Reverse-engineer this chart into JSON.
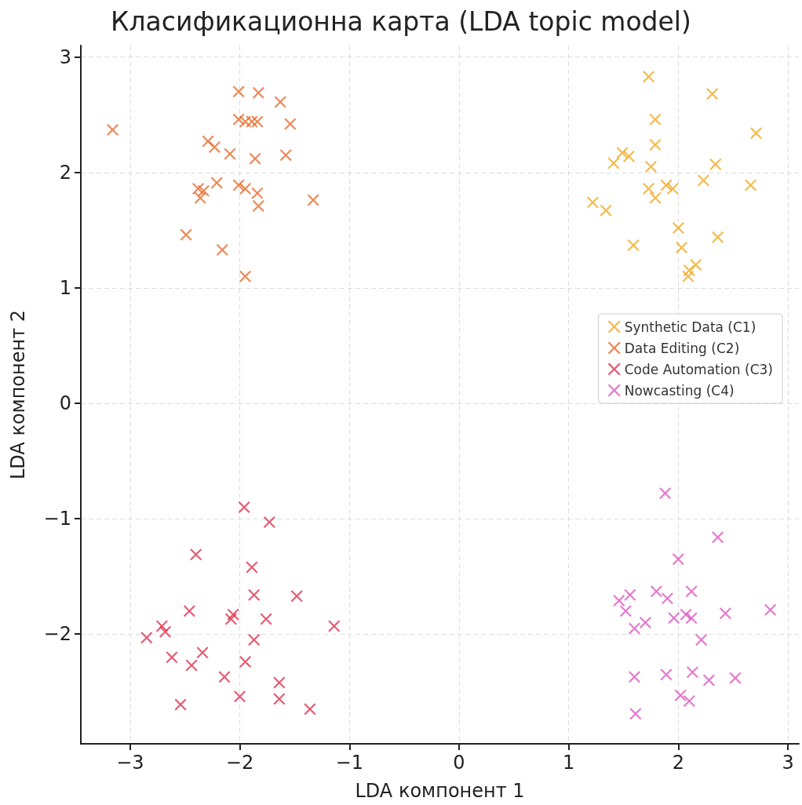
{
  "chart_data": {
    "type": "scatter",
    "title": "Класификационна карта (LDA topic model)",
    "xlabel": "LDA компонент 1",
    "ylabel": "LDA компонент 2",
    "xlim": [
      -3.45,
      3.1
    ],
    "ylim": [
      -2.95,
      3.1
    ],
    "xticks": [
      {
        "value": -3,
        "label": "−3"
      },
      {
        "value": -2,
        "label": "−2"
      },
      {
        "value": -1,
        "label": "−1"
      },
      0,
      1,
      2,
      3
    ],
    "yticks": [
      {
        "value": -2,
        "label": "−2"
      },
      {
        "value": -1,
        "label": "−1"
      },
      0,
      1,
      2,
      3
    ],
    "grid": true,
    "legend": "right",
    "marker": "cross",
    "series": [
      {
        "name": "Synthetic Data (C1)",
        "color": "#f2a71b",
        "x": [
          1.73,
          2.31,
          1.79,
          2.71,
          1.79,
          1.49,
          1.55,
          1.41,
          1.75,
          2.34,
          2.23,
          2.66,
          1.73,
          1.89,
          1.95,
          1.79,
          1.22,
          1.34,
          2.0,
          2.36,
          1.59,
          2.03,
          2.16,
          2.1,
          2.09
        ],
        "values": [
          2.83,
          2.68,
          2.46,
          2.34,
          2.24,
          2.17,
          2.14,
          2.08,
          2.05,
          2.07,
          1.93,
          1.89,
          1.86,
          1.89,
          1.86,
          1.78,
          1.74,
          1.67,
          1.52,
          1.44,
          1.37,
          1.35,
          1.2,
          1.15,
          1.1
        ]
      },
      {
        "name": "Data Editing (C2)",
        "color": "#e8692a",
        "x": [
          -3.16,
          -2.01,
          -1.83,
          -1.63,
          -2.01,
          -1.95,
          -1.89,
          -1.84,
          -1.54,
          -2.29,
          -2.23,
          -2.09,
          -1.86,
          -1.58,
          -2.21,
          -2.38,
          -2.33,
          -2.36,
          -2.01,
          -1.95,
          -1.84,
          -1.83,
          -1.33,
          -2.49,
          -2.16,
          -1.95
        ],
        "values": [
          2.37,
          2.7,
          2.69,
          2.61,
          2.46,
          2.44,
          2.44,
          2.44,
          2.42,
          2.27,
          2.22,
          2.16,
          2.12,
          2.15,
          1.91,
          1.86,
          1.84,
          1.78,
          1.89,
          1.86,
          1.82,
          1.71,
          1.76,
          1.46,
          1.33,
          1.1
        ]
      },
      {
        "name": "Code Automation (C3)",
        "color": "#e0304e",
        "x": [
          -1.96,
          -1.73,
          -2.4,
          -1.89,
          -1.87,
          -1.48,
          -2.46,
          -2.06,
          -2.08,
          -1.76,
          -1.14,
          -2.71,
          -2.68,
          -2.85,
          -1.87,
          -2.34,
          -2.62,
          -2.44,
          -1.95,
          -2.14,
          -1.64,
          -2.0,
          -1.64,
          -2.54,
          -1.36
        ],
        "values": [
          -0.9,
          -1.03,
          -1.31,
          -1.42,
          -1.66,
          -1.67,
          -1.8,
          -1.83,
          -1.87,
          -1.87,
          -1.93,
          -1.93,
          -1.98,
          -2.03,
          -2.05,
          -2.16,
          -2.2,
          -2.27,
          -2.24,
          -2.37,
          -2.42,
          -2.54,
          -2.56,
          -2.61,
          -2.65
        ]
      },
      {
        "name": "Nowcasting (C4)",
        "color": "#e055c0",
        "x": [
          1.88,
          2.36,
          2.0,
          1.46,
          1.56,
          1.8,
          1.9,
          2.12,
          1.52,
          1.96,
          2.07,
          2.12,
          2.43,
          2.84,
          1.6,
          1.7,
          2.21,
          1.6,
          1.89,
          2.13,
          2.28,
          2.52,
          2.02,
          2.1,
          1.61
        ],
        "values": [
          -0.78,
          -1.16,
          -1.35,
          -1.71,
          -1.66,
          -1.63,
          -1.69,
          -1.63,
          -1.8,
          -1.86,
          -1.83,
          -1.86,
          -1.82,
          -1.79,
          -1.95,
          -1.9,
          -2.05,
          -2.37,
          -2.35,
          -2.33,
          -2.4,
          -2.38,
          -2.53,
          -2.58,
          -2.69
        ]
      }
    ]
  }
}
